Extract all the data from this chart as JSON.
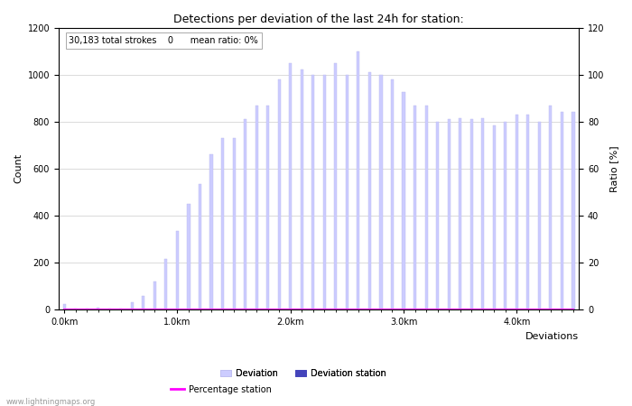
{
  "title": "Detections per deviation of the last 24h for station:",
  "annotation": "30,183 total strokes    0      mean ratio: 0%",
  "xlabel": "Deviations",
  "ylabel_left": "Count",
  "ylabel_right": "Ratio [%]",
  "ylim_left": [
    0,
    1200
  ],
  "ylim_right": [
    0,
    120
  ],
  "xtick_positions": [
    0,
    10,
    20,
    30,
    40
  ],
  "xtick_labels": [
    "0.0km",
    "1.0km",
    "2.0km",
    "3.0km",
    "4.0km"
  ],
  "ytick_left": [
    0,
    200,
    400,
    600,
    800,
    1000,
    1200
  ],
  "ytick_right": [
    0,
    20,
    40,
    60,
    80,
    100,
    120
  ],
  "bar_color_light": "#ccccff",
  "bar_color_dark": "#4444bb",
  "bar_edge_color": "#bbbbee",
  "deviation_values": [
    25,
    5,
    5,
    10,
    5,
    5,
    30,
    60,
    120,
    215,
    335,
    450,
    535,
    660,
    730,
    730,
    810,
    870,
    870,
    980,
    1050,
    1020,
    1000,
    1000,
    1050,
    1000,
    1100,
    1010,
    1000,
    980,
    925,
    870,
    870,
    800,
    810,
    815,
    810,
    815,
    785,
    800,
    830,
    830,
    800,
    870,
    840,
    840
  ],
  "station_values": [
    0,
    0,
    0,
    0,
    0,
    0,
    0,
    0,
    0,
    0,
    0,
    0,
    0,
    0,
    0,
    0,
    0,
    0,
    0,
    0,
    0,
    0,
    0,
    0,
    0,
    0,
    0,
    0,
    0,
    0,
    0,
    0,
    0,
    0,
    0,
    0,
    0,
    0,
    0,
    0,
    0,
    0,
    0,
    0,
    0,
    0
  ],
  "percentage_values": [
    0,
    0,
    0,
    0,
    0,
    0,
    0,
    0,
    0,
    0,
    0,
    0,
    0,
    0,
    0,
    0,
    0,
    0,
    0,
    0,
    0,
    0,
    0,
    0,
    0,
    0,
    0,
    0,
    0,
    0,
    0,
    0,
    0,
    0,
    0,
    0,
    0,
    0,
    0,
    0,
    0,
    0,
    0,
    0,
    0,
    0
  ],
  "grid_color": "#cccccc",
  "bg_color": "#ffffff",
  "watermark": "www.lightningmaps.org",
  "legend_items": [
    "Deviation",
    "Deviation station",
    "Percentage station"
  ],
  "n_bars": 46,
  "bar_width": 0.25
}
